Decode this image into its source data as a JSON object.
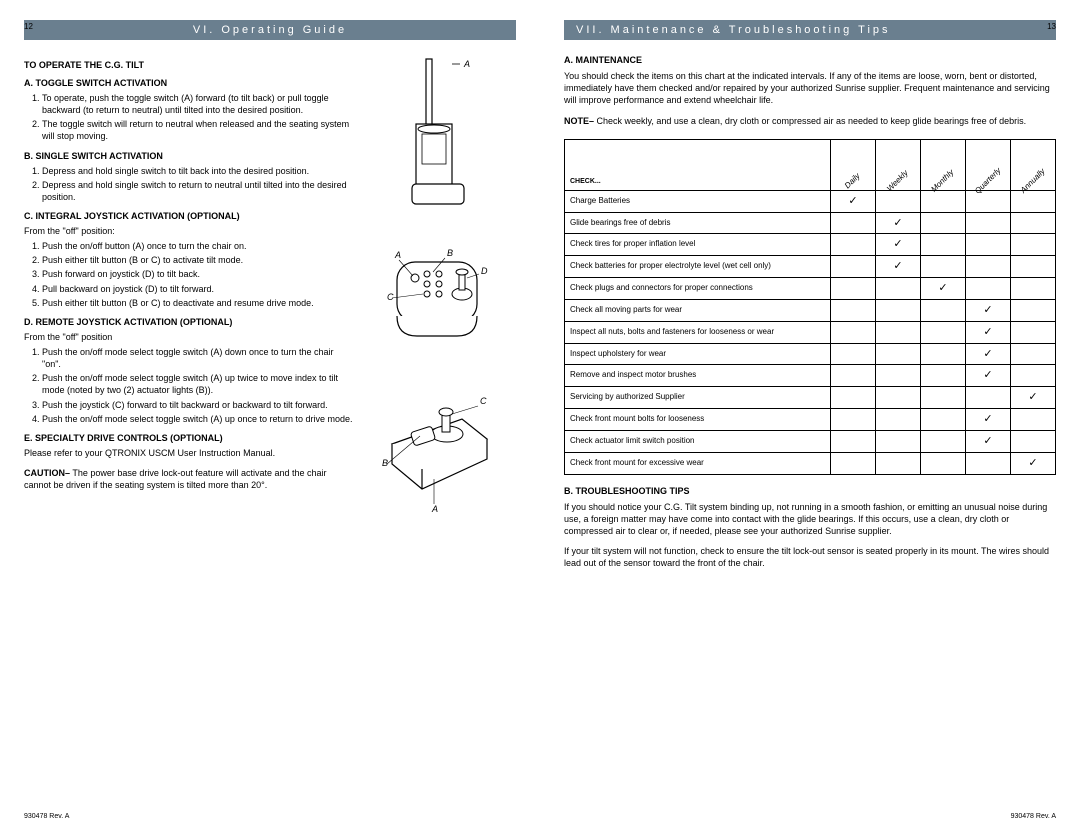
{
  "left_page": {
    "page_number": "12",
    "header": "VI. Operating Guide",
    "footer": "930478  Rev. A",
    "sections": {
      "title_main": "TO OPERATE THE C.G. TILT",
      "a_title": "A. TOGGLE SWITCH ACTIVATION",
      "a_items": [
        "To operate, push the toggle switch (A) forward (to tilt back) or pull toggle backward (to return to neutral) until tilted into the desired position.",
        "The toggle switch will return to neutral when released and the seating system will stop moving."
      ],
      "b_title": "B. SINGLE SWITCH ACTIVATION",
      "b_items": [
        "Depress and hold single switch to tilt back into the desired position.",
        "Depress and hold single switch to return to neutral until tilted into the desired position."
      ],
      "c_title": "C. INTEGRAL JOYSTICK ACTIVATION (OPTIONAL)",
      "c_intro": "From the \"off\" position:",
      "c_items": [
        "Push the on/off button (A) once to turn the chair on.",
        "Push either tilt button (B or C) to activate tilt mode.",
        "Push forward on joystick (D) to tilt back.",
        "Pull backward on joystick (D) to tilt forward.",
        "Push either tilt button (B or C) to deactivate and resume drive mode."
      ],
      "d_title": "D. REMOTE JOYSTICK ACTIVATION (OPTIONAL)",
      "d_intro": "From the \"off\" position",
      "d_items": [
        "Push the on/off mode select toggle switch (A) down once to turn the chair \"on\".",
        "Push the on/off mode select toggle switch (A) up twice to move index to tilt mode (noted by two (2) actuator lights (B)).",
        "Push the joystick (C) forward to tilt backward or backward to tilt forward.",
        "Push the on/off mode select toggle switch (A) up once to return to drive mode."
      ],
      "e_title": "E. SPECIALTY DRIVE CONTROLS (OPTIONAL)",
      "e_text": "Please refer to your QTRONIX USCM User Instruction Manual.",
      "caution_label": "CAUTION–",
      "caution_text": "The power base drive lock-out feature will activate and the chair cannot be driven if the seating system is tilted more than 20°."
    },
    "fig_labels": {
      "A": "A",
      "B": "B",
      "C": "C",
      "D": "D"
    }
  },
  "right_page": {
    "page_number": "13",
    "header": "VII. Maintenance & Troubleshooting Tips",
    "footer": "930478  Rev. A",
    "a_title": "A. MAINTENANCE",
    "a_text": "You should check the items on this chart at the indicated intervals. If any of the items are loose, worn, bent or distorted, immediately have them checked and/or repaired by your authorized Sunrise supplier. Frequent maintenance and servicing will improve performance and extend wheelchair life.",
    "note_label": "NOTE–",
    "note_text": "Check weekly, and use a clean, dry cloth or compressed air as needed to keep glide bearings free of debris.",
    "table": {
      "check_header": "CHECK...",
      "columns": [
        "Daily",
        "Weekly",
        "Monthly",
        "Quarterly",
        "Annually"
      ],
      "rows": [
        {
          "label": "Charge Batteries",
          "checks": [
            true,
            false,
            false,
            false,
            false
          ]
        },
        {
          "label": "Glide bearings free of debris",
          "checks": [
            false,
            true,
            false,
            false,
            false
          ]
        },
        {
          "label": "Check tires for proper inflation level",
          "checks": [
            false,
            true,
            false,
            false,
            false
          ]
        },
        {
          "label": "Check batteries for proper electrolyte level (wet cell only)",
          "checks": [
            false,
            true,
            false,
            false,
            false
          ]
        },
        {
          "label": "Check plugs and connectors for proper connections",
          "checks": [
            false,
            false,
            true,
            false,
            false
          ]
        },
        {
          "label": "Check all moving parts for wear",
          "checks": [
            false,
            false,
            false,
            true,
            false
          ]
        },
        {
          "label": "Inspect all nuts, bolts and fasteners for looseness or wear",
          "checks": [
            false,
            false,
            false,
            true,
            false
          ]
        },
        {
          "label": "Inspect upholstery for wear",
          "checks": [
            false,
            false,
            false,
            true,
            false
          ]
        },
        {
          "label": "Remove and inspect motor brushes",
          "checks": [
            false,
            false,
            false,
            true,
            false
          ]
        },
        {
          "label": "Servicing by authorized Supplier",
          "checks": [
            false,
            false,
            false,
            false,
            true
          ]
        },
        {
          "label": "Check front mount bolts for looseness",
          "checks": [
            false,
            false,
            false,
            true,
            false
          ]
        },
        {
          "label": "Check actuator limit switch position",
          "checks": [
            false,
            false,
            false,
            true,
            false
          ]
        },
        {
          "label": "Check front mount for excessive wear",
          "checks": [
            false,
            false,
            false,
            false,
            true
          ]
        }
      ]
    },
    "b_title": "B. TROUBLESHOOTING TIPS",
    "b_para1": "If you should notice your C.G. Tilt system binding up, not running in a smooth fashion, or emitting an unusual noise during use, a foreign matter may have come into contact with the glide bearings. If this occurs, use a clean, dry cloth or compressed air to clear or, if needed, please see your authorized Sunrise supplier.",
    "b_para2": "If your tilt system will not function, check to ensure the tilt lock-out sensor is seated properly in its mount. The wires should lead out of the sensor toward the front of the chair."
  }
}
